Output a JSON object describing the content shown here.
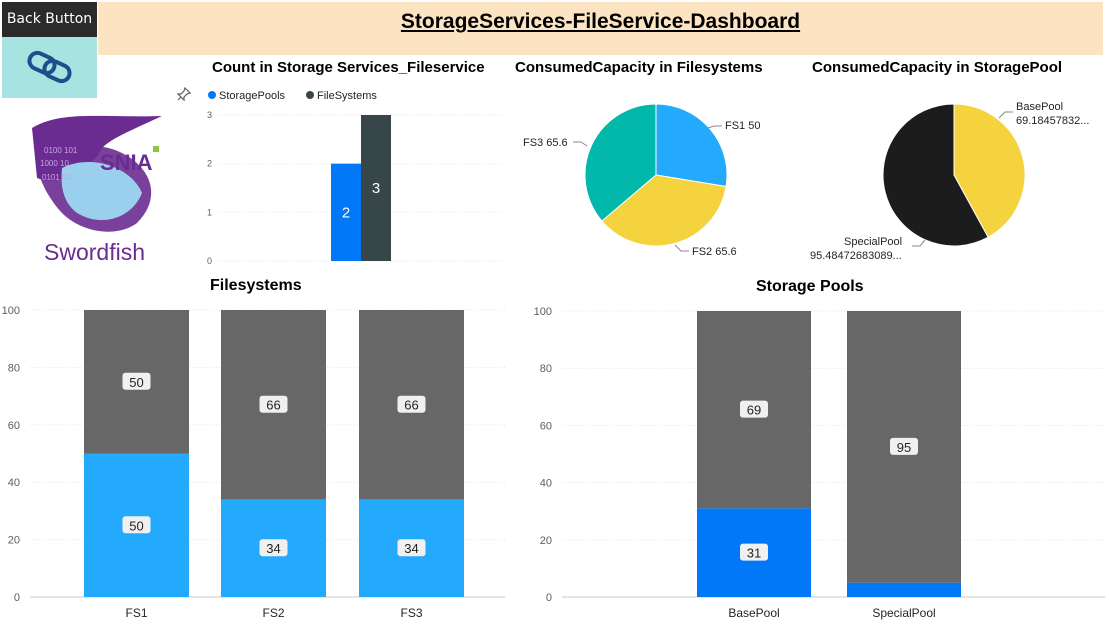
{
  "nav": {
    "back_label": "Back Button",
    "back_icon": "link-icon"
  },
  "header": {
    "title": "StorageServices-FileService-Dashboard"
  },
  "logo": {
    "text_top": "SNIA",
    "text_bottom": "Swordfish"
  },
  "colors": {
    "storagepools": "#0078f7",
    "filesystems": "#374649",
    "light_blue": "#23aafd",
    "dark_gray": "#676767",
    "teal": "#01b8aa",
    "yellow": "#f5d33f",
    "black": "#1c1c1c",
    "banner": "#fce4c2",
    "link_tile": "#a7e3e0"
  },
  "chart_data": [
    {
      "type": "bar",
      "title": "Count in Storage Services_Fileservice",
      "legend_position": "top-left",
      "ylim": [
        0,
        3
      ],
      "yticks": [
        0,
        1,
        2,
        3
      ],
      "series": [
        {
          "name": "StoragePools",
          "values": [
            2
          ]
        },
        {
          "name": "FileSystems",
          "values": [
            3
          ]
        }
      ]
    },
    {
      "type": "pie",
      "title": "ConsumedCapacity in Filesystems",
      "slices": [
        {
          "label": "FS1",
          "value": 50,
          "display": "FS1 50"
        },
        {
          "label": "FS2",
          "value": 65.6,
          "display": "FS2 65.6"
        },
        {
          "label": "FS3",
          "value": 65.6,
          "display": "FS3 65.6"
        }
      ]
    },
    {
      "type": "pie",
      "title": "ConsumedCapacity in StoragePool",
      "slices": [
        {
          "label": "BasePool",
          "value": 69.18457832,
          "display_name": "BasePool",
          "display_value": "69.18457832..."
        },
        {
          "label": "SpecialPool",
          "value": 95.48472683089,
          "display_name": "SpecialPool",
          "display_value": "95.48472683089..."
        }
      ]
    },
    {
      "type": "bar",
      "stacked": true,
      "title": "Filesystems",
      "categories": [
        "FS1",
        "FS2",
        "FS3"
      ],
      "ylim": [
        0,
        100
      ],
      "yticks": [
        0,
        20,
        40,
        60,
        80,
        100
      ],
      "series": [
        {
          "values": [
            50,
            34,
            34
          ],
          "labels": [
            "50",
            "34",
            "34"
          ]
        },
        {
          "values": [
            50,
            66,
            66
          ],
          "labels": [
            "50",
            "66",
            "66"
          ]
        }
      ]
    },
    {
      "type": "bar",
      "stacked": true,
      "title": "Storage Pools",
      "categories": [
        "BasePool",
        "SpecialPool"
      ],
      "ylim": [
        0,
        100
      ],
      "yticks": [
        0,
        20,
        40,
        60,
        80,
        100
      ],
      "series": [
        {
          "values": [
            31,
            5
          ],
          "labels": [
            "31",
            ""
          ]
        },
        {
          "values": [
            69,
            95
          ],
          "labels": [
            "69",
            "95"
          ]
        }
      ]
    }
  ]
}
